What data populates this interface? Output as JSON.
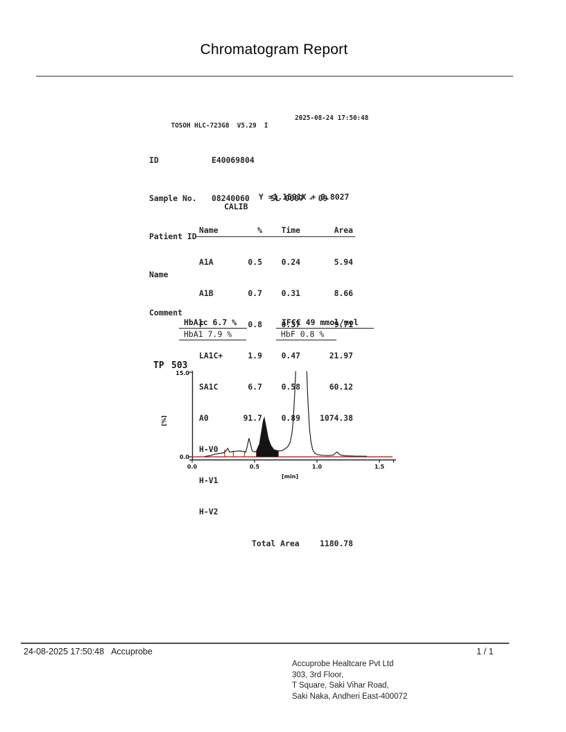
{
  "title": "Chromatogram Report",
  "device": {
    "header_left": "TOSOH HLC-723G8  V5.29  I",
    "header_datetime": "2025-08-24 17:50:48",
    "fields": [
      {
        "label": "ID",
        "value": "E40069804",
        "extra": ""
      },
      {
        "label": "Sample No.",
        "value": "08240060",
        "extra": "SL 0007 - 09"
      },
      {
        "label": "Patient ID",
        "value": "",
        "extra": ""
      },
      {
        "label": "Name",
        "value": "",
        "extra": ""
      },
      {
        "label": "Comment",
        "value": "",
        "extra": ""
      }
    ]
  },
  "calib": {
    "title": "CALIB",
    "equation": "Y =1.1591X + 0.8027",
    "headers": [
      "Name",
      "%",
      "Time",
      "Area"
    ],
    "rows": [
      [
        "A1A",
        "0.5",
        "0.24",
        "5.94"
      ],
      [
        "A1B",
        "0.7",
        "0.31",
        "8.66"
      ],
      [
        "F",
        "0.8",
        "0.37",
        "9.71"
      ],
      [
        "LA1C+",
        "1.9",
        "0.47",
        "21.97"
      ],
      [
        "SA1C",
        "6.7",
        "0.58",
        "60.12"
      ],
      [
        "A0",
        "91.7",
        "0.89",
        "1074.38"
      ],
      [
        "H-V0",
        "",
        "",
        ""
      ],
      [
        "H-V1",
        "",
        "",
        ""
      ],
      [
        "H-V2",
        "",
        "",
        ""
      ]
    ],
    "total_label": "Total Area",
    "total_value": "1180.78"
  },
  "results": {
    "hba1c": "HbA1c 6.7 %",
    "ifcc": "IFCC 49 mmol/mol",
    "hba1": "HbA1 7.9 %",
    "hbf": "HbF 0.8 %"
  },
  "chart": {
    "tp_label": "TP",
    "tp_value": "503",
    "y_max_label": "15.0",
    "y_min_label": "0.0",
    "y_unit": "[%]",
    "x_ticks": [
      "0.0",
      "0.5",
      "1.0",
      "1.5"
    ],
    "x_unit": "[min]"
  },
  "chart_data": {
    "type": "line",
    "title": "TP 503",
    "xlabel": "[min]",
    "ylabel": "[%]",
    "xlim": [
      0.0,
      1.6
    ],
    "ylim": [
      0.0,
      15.0
    ],
    "x_tick_values": [
      0.0,
      0.5,
      1.0,
      1.5
    ],
    "y_tick_values": [
      0.0,
      15.0
    ],
    "grid": false,
    "trace_color": "#1f1f1f",
    "baseline_color": "#b03a32",
    "fill_color": "#141414",
    "baseline_x": [
      0.0,
      1.605
    ],
    "filled_region": [
      0.515,
      0.69
    ],
    "delimiters": [
      [
        0.26,
        1.3
      ],
      [
        0.33,
        1.1
      ],
      [
        0.42,
        1.0
      ],
      [
        0.515,
        1.0
      ],
      [
        0.69,
        1.05
      ]
    ],
    "peaks": [
      {
        "name": "A1A",
        "time": 0.24,
        "pct": 0.5,
        "area": 5.94
      },
      {
        "name": "A1B",
        "time": 0.31,
        "pct": 0.7,
        "area": 8.66
      },
      {
        "name": "F",
        "time": 0.37,
        "pct": 0.8,
        "area": 9.71
      },
      {
        "name": "LA1C+",
        "time": 0.47,
        "pct": 1.9,
        "area": 21.97
      },
      {
        "name": "SA1C",
        "time": 0.58,
        "pct": 6.7,
        "area": 60.12,
        "filled": true
      },
      {
        "name": "A0",
        "time": 0.89,
        "pct": 91.7,
        "area": 1074.38,
        "clipped_above_ymax": true
      }
    ],
    "trace": [
      [
        0.1,
        0.05
      ],
      [
        0.14,
        0.2
      ],
      [
        0.18,
        0.45
      ],
      [
        0.22,
        0.6
      ],
      [
        0.26,
        0.75
      ],
      [
        0.285,
        1.5
      ],
      [
        0.3,
        0.85
      ],
      [
        0.34,
        0.95
      ],
      [
        0.38,
        1.05
      ],
      [
        0.41,
        0.95
      ],
      [
        0.43,
        0.85
      ],
      [
        0.445,
        2.2
      ],
      [
        0.455,
        3.3
      ],
      [
        0.465,
        2.5
      ],
      [
        0.48,
        1.1
      ],
      [
        0.5,
        0.85
      ],
      [
        0.515,
        1.0
      ],
      [
        0.54,
        2.3
      ],
      [
        0.555,
        4.3
      ],
      [
        0.57,
        6.4
      ],
      [
        0.578,
        6.9
      ],
      [
        0.59,
        5.5
      ],
      [
        0.61,
        3.2
      ],
      [
        0.63,
        2.0
      ],
      [
        0.655,
        1.25
      ],
      [
        0.69,
        1.05
      ],
      [
        0.72,
        1.1
      ],
      [
        0.75,
        1.5
      ],
      [
        0.77,
        1.9
      ],
      [
        0.785,
        2.6
      ],
      [
        0.8,
        4.2
      ],
      [
        0.81,
        6.5
      ],
      [
        0.816,
        9.0
      ],
      [
        0.822,
        11.5
      ],
      [
        0.83,
        15.5
      ],
      [
        0.845,
        40
      ],
      [
        0.905,
        40
      ],
      [
        0.918,
        15.5
      ],
      [
        0.925,
        11.0
      ],
      [
        0.932,
        8.0
      ],
      [
        0.94,
        5.0
      ],
      [
        0.952,
        2.6
      ],
      [
        0.965,
        1.3
      ],
      [
        0.98,
        0.7
      ],
      [
        1.0,
        0.4
      ],
      [
        1.04,
        0.27
      ],
      [
        1.09,
        0.22
      ],
      [
        1.13,
        0.3
      ],
      [
        1.16,
        0.85
      ],
      [
        1.185,
        0.35
      ],
      [
        1.22,
        0.18
      ],
      [
        1.3,
        0.12
      ],
      [
        1.4,
        0.1
      ]
    ]
  },
  "footer": {
    "datetime": "24-08-2025 17:50:48",
    "operator": "Accuprobe",
    "page": "1 / 1",
    "address": [
      "Accuprobe Healtcare Pvt Ltd",
      "303, 3rd Floor,",
      "T Square, Saki Vihar Road,",
      "Saki Naka, Andheri East-400072"
    ]
  }
}
